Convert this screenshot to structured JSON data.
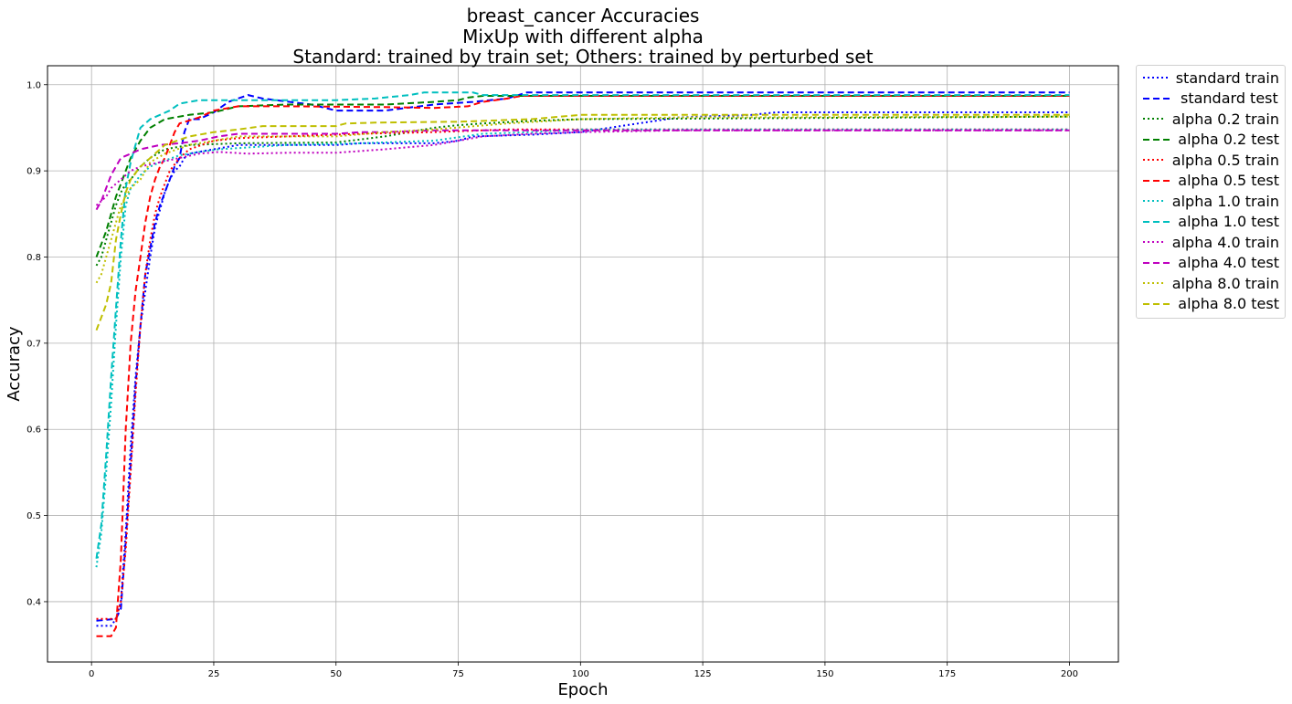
{
  "chart_data": {
    "type": "line",
    "title_lines": [
      "breast_cancer Accuracies",
      "MixUp with different alpha",
      "Standard: trained by train set; Others: trained by perturbed set"
    ],
    "xlabel": "Epoch",
    "ylabel": "Accuracy",
    "xlim": [
      -9,
      210
    ],
    "ylim": [
      0.33,
      1.022
    ],
    "x_ticks": [
      0,
      25,
      50,
      75,
      100,
      125,
      150,
      175,
      200
    ],
    "y_ticks": [
      0.4,
      0.5,
      0.6,
      0.7,
      0.8,
      0.9,
      1.0
    ],
    "grid": true,
    "legend_position": "outside-right",
    "series": [
      {
        "name": "standard train",
        "color": "#0000ff",
        "style": "dotted",
        "points": [
          [
            1,
            0.372
          ],
          [
            4,
            0.372
          ],
          [
            5,
            0.38
          ],
          [
            6,
            0.4
          ],
          [
            7,
            0.48
          ],
          [
            8,
            0.58
          ],
          [
            9,
            0.66
          ],
          [
            10,
            0.72
          ],
          [
            11,
            0.76
          ],
          [
            12,
            0.8
          ],
          [
            13,
            0.835
          ],
          [
            14,
            0.855
          ],
          [
            15,
            0.875
          ],
          [
            16,
            0.89
          ],
          [
            17,
            0.9
          ],
          [
            18,
            0.905
          ],
          [
            19,
            0.915
          ],
          [
            20,
            0.92
          ],
          [
            25,
            0.925
          ],
          [
            30,
            0.93
          ],
          [
            40,
            0.93
          ],
          [
            50,
            0.93
          ],
          [
            55,
            0.932
          ],
          [
            70,
            0.932
          ],
          [
            75,
            0.935
          ],
          [
            78,
            0.94
          ],
          [
            90,
            0.942
          ],
          [
            100,
            0.945
          ],
          [
            120,
            0.962
          ],
          [
            135,
            0.965
          ],
          [
            140,
            0.968
          ],
          [
            200,
            0.968
          ]
        ]
      },
      {
        "name": "standard test",
        "color": "#0000ff",
        "style": "dashed",
        "points": [
          [
            1,
            0.378
          ],
          [
            5,
            0.38
          ],
          [
            6,
            0.392
          ],
          [
            7,
            0.47
          ],
          [
            8,
            0.56
          ],
          [
            9,
            0.65
          ],
          [
            10,
            0.72
          ],
          [
            11,
            0.78
          ],
          [
            12,
            0.81
          ],
          [
            13,
            0.84
          ],
          [
            14,
            0.86
          ],
          [
            15,
            0.875
          ],
          [
            16,
            0.89
          ],
          [
            17,
            0.905
          ],
          [
            18,
            0.915
          ],
          [
            19,
            0.945
          ],
          [
            20,
            0.96
          ],
          [
            22,
            0.96
          ],
          [
            25,
            0.968
          ],
          [
            28,
            0.98
          ],
          [
            32,
            0.988
          ],
          [
            35,
            0.984
          ],
          [
            45,
            0.977
          ],
          [
            50,
            0.97
          ],
          [
            60,
            0.97
          ],
          [
            70,
            0.977
          ],
          [
            78,
            0.98
          ],
          [
            85,
            0.984
          ],
          [
            89,
            0.991
          ],
          [
            200,
            0.991
          ]
        ]
      },
      {
        "name": "alpha 0.2 train",
        "color": "#008000",
        "style": "dotted",
        "points": [
          [
            1,
            0.79
          ],
          [
            2,
            0.8
          ],
          [
            3,
            0.82
          ],
          [
            4,
            0.84
          ],
          [
            5,
            0.86
          ],
          [
            6,
            0.875
          ],
          [
            7,
            0.885
          ],
          [
            8,
            0.89
          ],
          [
            10,
            0.905
          ],
          [
            12,
            0.915
          ],
          [
            15,
            0.925
          ],
          [
            20,
            0.93
          ],
          [
            30,
            0.932
          ],
          [
            50,
            0.933
          ],
          [
            60,
            0.94
          ],
          [
            70,
            0.95
          ],
          [
            75,
            0.953
          ],
          [
            80,
            0.955
          ],
          [
            90,
            0.958
          ],
          [
            100,
            0.96
          ],
          [
            200,
            0.963
          ]
        ]
      },
      {
        "name": "alpha 0.2 test",
        "color": "#008000",
        "style": "dashed",
        "points": [
          [
            1,
            0.8
          ],
          [
            2,
            0.815
          ],
          [
            3,
            0.83
          ],
          [
            4,
            0.85
          ],
          [
            5,
            0.87
          ],
          [
            6,
            0.885
          ],
          [
            7,
            0.9
          ],
          [
            8,
            0.915
          ],
          [
            10,
            0.935
          ],
          [
            12,
            0.95
          ],
          [
            15,
            0.96
          ],
          [
            20,
            0.965
          ],
          [
            25,
            0.968
          ],
          [
            30,
            0.975
          ],
          [
            40,
            0.977
          ],
          [
            60,
            0.977
          ],
          [
            70,
            0.98
          ],
          [
            75,
            0.982
          ],
          [
            77,
            0.985
          ],
          [
            80,
            0.987
          ],
          [
            200,
            0.987
          ]
        ]
      },
      {
        "name": "alpha 0.5 train",
        "color": "#ff0000",
        "style": "dotted",
        "points": [
          [
            1,
            0.38
          ],
          [
            5,
            0.38
          ],
          [
            6,
            0.4
          ],
          [
            7,
            0.46
          ],
          [
            8,
            0.55
          ],
          [
            9,
            0.64
          ],
          [
            10,
            0.72
          ],
          [
            11,
            0.78
          ],
          [
            12,
            0.82
          ],
          [
            13,
            0.85
          ],
          [
            14,
            0.87
          ],
          [
            15,
            0.885
          ],
          [
            16,
            0.9
          ],
          [
            18,
            0.915
          ],
          [
            20,
            0.925
          ],
          [
            25,
            0.935
          ],
          [
            30,
            0.938
          ],
          [
            40,
            0.94
          ],
          [
            55,
            0.943
          ],
          [
            70,
            0.945
          ],
          [
            85,
            0.948
          ],
          [
            100,
            0.948
          ],
          [
            200,
            0.948
          ]
        ]
      },
      {
        "name": "alpha 0.5 test",
        "color": "#ff0000",
        "style": "dashed",
        "points": [
          [
            1,
            0.36
          ],
          [
            4,
            0.36
          ],
          [
            5,
            0.37
          ],
          [
            6,
            0.45
          ],
          [
            7,
            0.6
          ],
          [
            8,
            0.7
          ],
          [
            9,
            0.76
          ],
          [
            10,
            0.8
          ],
          [
            11,
            0.84
          ],
          [
            12,
            0.87
          ],
          [
            13,
            0.89
          ],
          [
            14,
            0.905
          ],
          [
            15,
            0.915
          ],
          [
            16,
            0.93
          ],
          [
            17,
            0.945
          ],
          [
            18,
            0.955
          ],
          [
            22,
            0.962
          ],
          [
            25,
            0.97
          ],
          [
            30,
            0.975
          ],
          [
            40,
            0.975
          ],
          [
            60,
            0.974
          ],
          [
            70,
            0.973
          ],
          [
            77,
            0.975
          ],
          [
            80,
            0.98
          ],
          [
            85,
            0.984
          ],
          [
            88,
            0.987
          ],
          [
            200,
            0.987
          ]
        ]
      },
      {
        "name": "alpha 1.0 train",
        "color": "#00bfbf",
        "style": "dotted",
        "points": [
          [
            1,
            0.44
          ],
          [
            2,
            0.48
          ],
          [
            3,
            0.55
          ],
          [
            4,
            0.63
          ],
          [
            5,
            0.72
          ],
          [
            6,
            0.8
          ],
          [
            7,
            0.86
          ],
          [
            8,
            0.88
          ],
          [
            10,
            0.895
          ],
          [
            12,
            0.905
          ],
          [
            14,
            0.91
          ],
          [
            18,
            0.918
          ],
          [
            22,
            0.922
          ],
          [
            26,
            0.925
          ],
          [
            40,
            0.93
          ],
          [
            55,
            0.932
          ],
          [
            70,
            0.935
          ],
          [
            80,
            0.943
          ],
          [
            90,
            0.945
          ],
          [
            100,
            0.948
          ],
          [
            200,
            0.948
          ]
        ]
      },
      {
        "name": "alpha 1.0 test",
        "color": "#00bfbf",
        "style": "dashed",
        "points": [
          [
            1,
            0.45
          ],
          [
            2,
            0.49
          ],
          [
            3,
            0.57
          ],
          [
            4,
            0.66
          ],
          [
            5,
            0.74
          ],
          [
            6,
            0.82
          ],
          [
            7,
            0.88
          ],
          [
            8,
            0.91
          ],
          [
            9,
            0.93
          ],
          [
            10,
            0.95
          ],
          [
            12,
            0.96
          ],
          [
            14,
            0.965
          ],
          [
            16,
            0.97
          ],
          [
            18,
            0.978
          ],
          [
            22,
            0.982
          ],
          [
            30,
            0.982
          ],
          [
            50,
            0.982
          ],
          [
            58,
            0.984
          ],
          [
            65,
            0.988
          ],
          [
            68,
            0.991
          ],
          [
            78,
            0.991
          ],
          [
            80,
            0.988
          ],
          [
            200,
            0.988
          ]
        ]
      },
      {
        "name": "alpha 4.0 train",
        "color": "#bf00bf",
        "style": "dotted",
        "points": [
          [
            1,
            0.86
          ],
          [
            3,
            0.87
          ],
          [
            4,
            0.88
          ],
          [
            5,
            0.885
          ],
          [
            6,
            0.89
          ],
          [
            8,
            0.9
          ],
          [
            10,
            0.905
          ],
          [
            14,
            0.91
          ],
          [
            18,
            0.915
          ],
          [
            22,
            0.92
          ],
          [
            26,
            0.922
          ],
          [
            32,
            0.92
          ],
          [
            40,
            0.921
          ],
          [
            50,
            0.921
          ],
          [
            60,
            0.925
          ],
          [
            70,
            0.93
          ],
          [
            80,
            0.94
          ],
          [
            90,
            0.943
          ],
          [
            100,
            0.945
          ],
          [
            120,
            0.947
          ],
          [
            200,
            0.947
          ]
        ]
      },
      {
        "name": "alpha 4.0 test",
        "color": "#bf00bf",
        "style": "dashed",
        "points": [
          [
            1,
            0.855
          ],
          [
            2,
            0.865
          ],
          [
            3,
            0.88
          ],
          [
            4,
            0.895
          ],
          [
            5,
            0.905
          ],
          [
            6,
            0.915
          ],
          [
            8,
            0.92
          ],
          [
            10,
            0.925
          ],
          [
            14,
            0.93
          ],
          [
            18,
            0.932
          ],
          [
            22,
            0.935
          ],
          [
            26,
            0.94
          ],
          [
            30,
            0.943
          ],
          [
            50,
            0.943
          ],
          [
            55,
            0.945
          ],
          [
            60,
            0.945
          ],
          [
            70,
            0.947
          ],
          [
            100,
            0.947
          ],
          [
            200,
            0.947
          ]
        ]
      },
      {
        "name": "alpha 8.0 train",
        "color": "#bfbf00",
        "style": "dotted",
        "points": [
          [
            1,
            0.77
          ],
          [
            2,
            0.78
          ],
          [
            3,
            0.8
          ],
          [
            4,
            0.82
          ],
          [
            5,
            0.84
          ],
          [
            6,
            0.86
          ],
          [
            7,
            0.87
          ],
          [
            8,
            0.88
          ],
          [
            10,
            0.89
          ],
          [
            12,
            0.91
          ],
          [
            15,
            0.92
          ],
          [
            20,
            0.93
          ],
          [
            25,
            0.935
          ],
          [
            30,
            0.94
          ],
          [
            50,
            0.94
          ],
          [
            60,
            0.945
          ],
          [
            70,
            0.948
          ],
          [
            85,
            0.955
          ],
          [
            100,
            0.96
          ],
          [
            120,
            0.962
          ],
          [
            200,
            0.963
          ]
        ]
      },
      {
        "name": "alpha 8.0 test",
        "color": "#bfbf00",
        "style": "dashed",
        "points": [
          [
            1,
            0.715
          ],
          [
            2,
            0.73
          ],
          [
            3,
            0.745
          ],
          [
            4,
            0.77
          ],
          [
            5,
            0.82
          ],
          [
            6,
            0.85
          ],
          [
            7,
            0.875
          ],
          [
            8,
            0.89
          ],
          [
            10,
            0.905
          ],
          [
            12,
            0.915
          ],
          [
            15,
            0.93
          ],
          [
            20,
            0.94
          ],
          [
            25,
            0.945
          ],
          [
            30,
            0.948
          ],
          [
            35,
            0.952
          ],
          [
            50,
            0.952
          ],
          [
            52,
            0.955
          ],
          [
            58,
            0.956
          ],
          [
            75,
            0.957
          ],
          [
            90,
            0.96
          ],
          [
            100,
            0.965
          ],
          [
            200,
            0.965
          ]
        ]
      }
    ]
  }
}
